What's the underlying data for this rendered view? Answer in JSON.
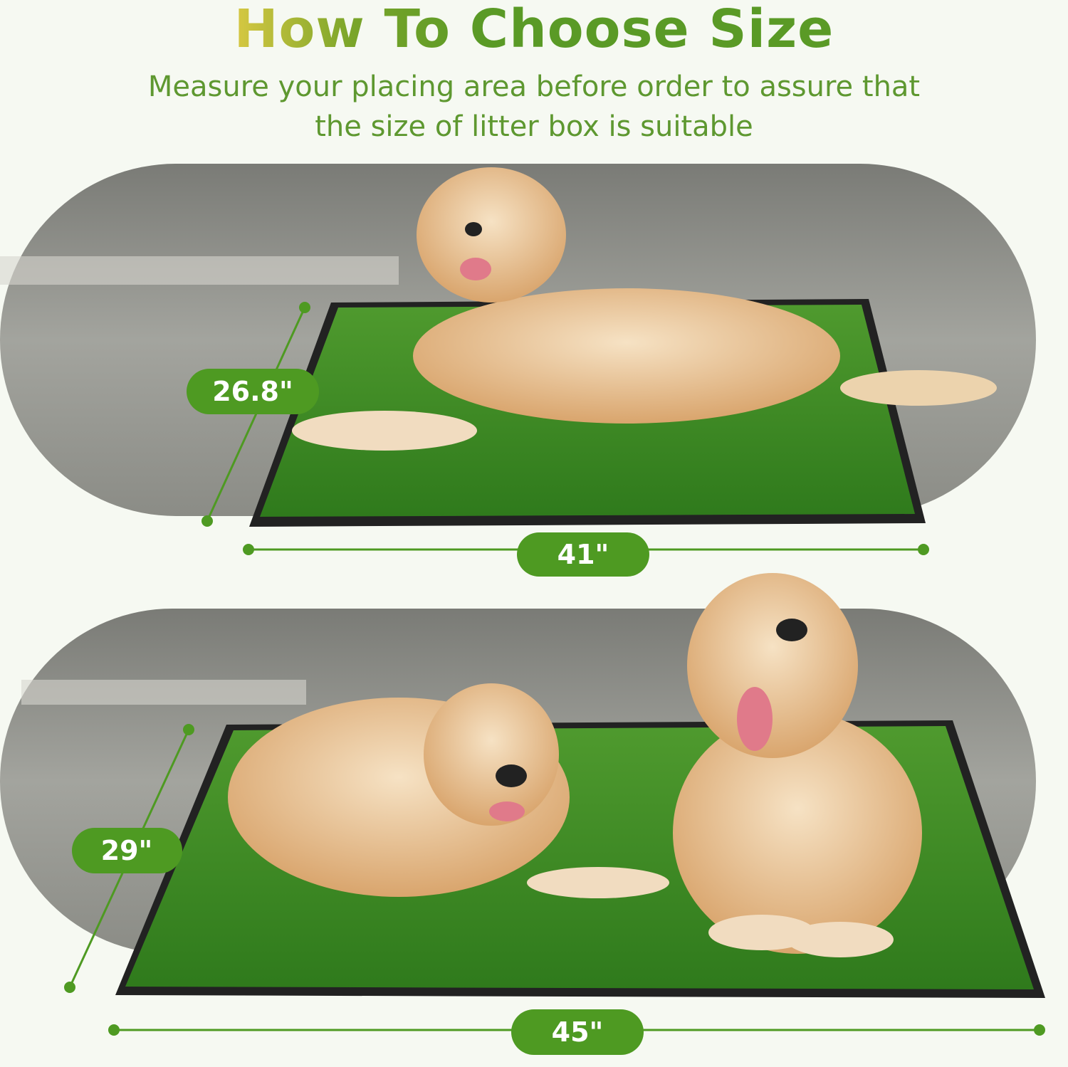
{
  "header": {
    "title": "How To Choose Size",
    "subtitle_line1": "Measure your placing area before order to assure that",
    "subtitle_line2": "the size of litter box is suitable"
  },
  "products": [
    {
      "depth_label": "26.8\"",
      "width_label": "41\"",
      "dogs": 1
    },
    {
      "depth_label": "29\"",
      "width_label": "45\"",
      "dogs": 2
    }
  ],
  "colors": {
    "accent": "#4e9a22",
    "grass": "#3f8a25",
    "tray": "#2a2a2a",
    "floor": "#8e8f8a"
  }
}
